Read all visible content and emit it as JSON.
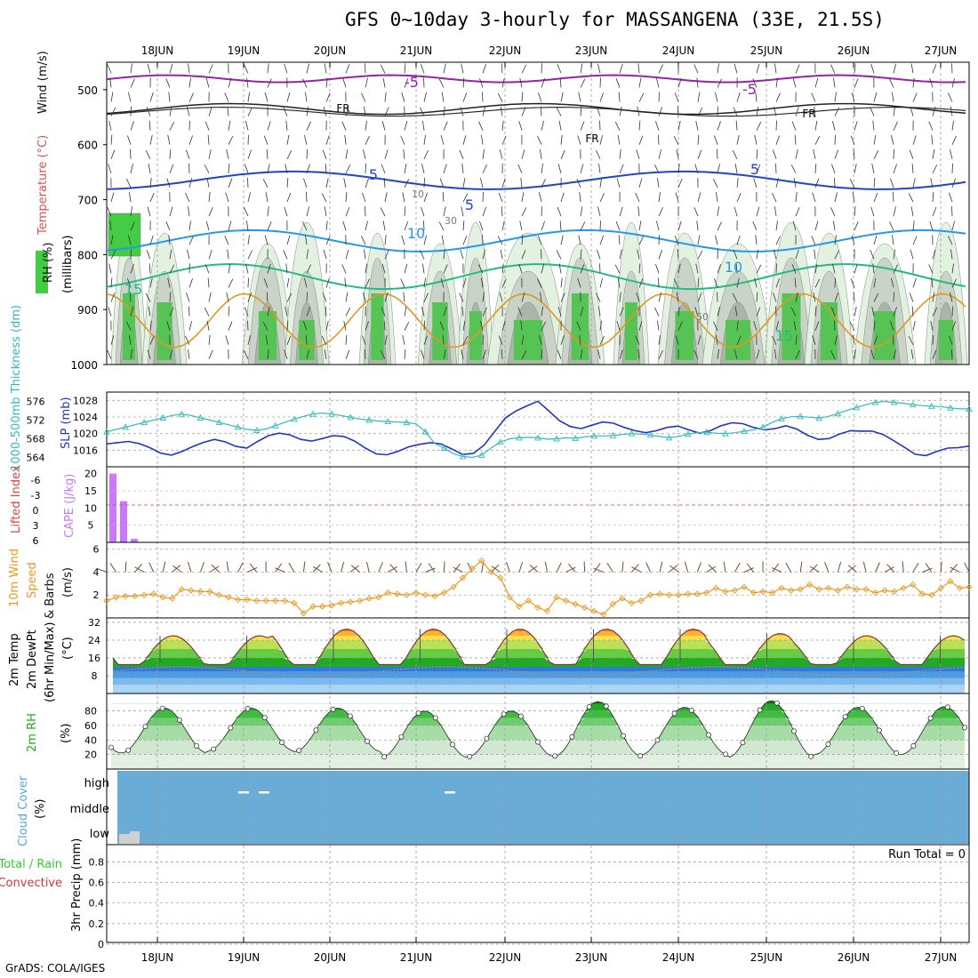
{
  "title": "GFS 0~10day 3-hourly for MASSANGENA (33E, 21.5S)",
  "footer": "GrADS: COLA/IGES",
  "dates": [
    "18JUN",
    "19JUN",
    "20JUN",
    "21JUN",
    "22JUN",
    "23JUN",
    "24JUN",
    "25JUN",
    "26JUN",
    "27JUN"
  ],
  "colors": {
    "slp": "#2233cc",
    "thickness": "#33bbbb",
    "cape": "#cc77ff",
    "lifted": "#dd4444",
    "wind10m": "#ee9922",
    "barb": "#7a4a2a",
    "rh_green": "#22bb22",
    "cloud_blue": "#6aacd6",
    "rain_green": "#33cc33",
    "conv_red": "#dd3333",
    "fz_purple": "#9922aa",
    "t5": "#2244cc",
    "t10": "#2299ee",
    "t15": "#22bb88",
    "warm": "#dd9922"
  },
  "chart_data": [
    {
      "type": "heatmap",
      "name": "Upper-air cross-section",
      "ylabel_parts": [
        "RH (%)",
        "Temperature (°C)",
        "Wind (m/s)"
      ],
      "ylabel_unit": "(millibars)",
      "y_ticks": [
        "500",
        "600",
        "700",
        "800",
        "900",
        "1000"
      ],
      "ylim": [
        450,
        1000
      ],
      "isotherm_labels": [
        "-5",
        "-5",
        "FR",
        "FR",
        "FR",
        "5",
        "5",
        "5",
        "10",
        "10",
        "15",
        "15"
      ],
      "rh_labels": [
        "10",
        "30",
        "50"
      ]
    },
    {
      "type": "line",
      "name": "SLP and thickness",
      "ylabel_left": "1000-500mb Thickness (dm)",
      "ylabel_right": "SLP (mb)",
      "left_ticks": [
        "576",
        "572",
        "568",
        "564"
      ],
      "right_ticks": [
        "1028",
        "1024",
        "1020",
        "1016"
      ],
      "series": [
        {
          "name": "SLP (mb)",
          "values": [
            1017.5,
            1017.8,
            1018.1,
            1017.6,
            1016.6,
            1015.3,
            1014.8,
            1015.7,
            1016.9,
            1017.9,
            1018.6,
            1018.0,
            1016.9,
            1016.5,
            1018.1,
            1019.5,
            1020.1,
            1019.7,
            1018.6,
            1018.2,
            1018.8,
            1019.5,
            1019.3,
            1018.2,
            1016.5,
            1015.1,
            1014.9,
            1015.7,
            1016.8,
            1017.4,
            1017.8,
            1017.5,
            1016.3,
            1015.0,
            1015.2,
            1017.2,
            1020.5,
            1023.8,
            1025.5,
            1026.7,
            1027.8,
            1025.5,
            1023.1,
            1021.7,
            1021.2,
            1022.0,
            1022.8,
            1022.5,
            1021.5,
            1020.7,
            1020.2,
            1020.7,
            1021.5,
            1021.8,
            1020.9,
            1020.1,
            1020.7,
            1021.9,
            1022.6,
            1022.4,
            1021.5,
            1020.9,
            1021.2,
            1021.9,
            1021.1,
            1019.6,
            1018.6,
            1018.8,
            1019.9,
            1020.7,
            1020.6,
            1020.6,
            1019.8,
            1018.3,
            1016.7,
            1015.0,
            1014.7,
            1015.7,
            1016.5,
            1016.6,
            1017.0
          ]
        },
        {
          "name": "1000-500mb Thickness (dm)",
          "values": [
            569.5,
            570.0,
            570.5,
            571.0,
            571.5,
            572.0,
            572.5,
            573.0,
            573.3,
            573.0,
            572.5,
            572.0,
            571.5,
            571.0,
            570.5,
            570.0,
            569.8,
            570.1,
            570.8,
            571.5,
            572.2,
            572.8,
            573.3,
            573.5,
            573.3,
            573.0,
            572.6,
            572.2,
            572.0,
            571.8,
            571.7,
            571.6,
            571.5,
            571.2,
            569.5,
            567.0,
            566.0,
            564.8,
            564.2,
            564.0,
            564.5,
            566.0,
            567.3,
            568.0,
            568.2,
            568.3,
            568.2,
            567.9,
            568.0,
            568.2,
            568.1,
            568.4,
            568.6,
            568.6,
            568.7,
            568.9,
            569.1,
            569.0,
            568.8,
            568.5,
            568.2,
            568.5,
            569.0,
            569.3,
            569.4,
            569.2,
            569.1,
            569.3,
            569.6,
            569.9,
            570.5,
            571.5,
            572.3,
            572.7,
            572.8,
            572.6,
            572.4,
            572.8,
            573.4,
            574.1,
            574.7,
            575.3,
            575.8,
            576.0,
            575.8,
            575.6,
            575.3,
            575.1,
            575.0,
            574.9,
            574.6,
            574.4,
            574.4
          ]
        }
      ]
    },
    {
      "type": "bar",
      "name": "CAPE and Lifted Index",
      "ylabel_left": "Lifted Index",
      "ylabel_right": "CAPE (J/kg)",
      "left_ticks": [
        "-6",
        "-3",
        "0",
        "3",
        "6"
      ],
      "right_ticks": [
        "20",
        "15",
        "10",
        "5"
      ],
      "values": [
        20,
        12,
        1
      ],
      "lifted_index_zero_line": 0
    },
    {
      "type": "line",
      "name": "10m wind",
      "ylabel": "10m Wind Speed & Barbs (m/s)",
      "ylabel_parts": [
        "10m Wind",
        "Speed",
        "& Barbs",
        "(m/s)"
      ],
      "y_ticks": [
        "6",
        "4",
        "2"
      ],
      "ylim": [
        0,
        6
      ],
      "values": [
        1.5,
        1.8,
        1.9,
        1.9,
        2.0,
        2.1,
        1.8,
        1.7,
        2.5,
        2.4,
        2.3,
        2.3,
        2.0,
        1.8,
        1.6,
        1.6,
        1.5,
        1.5,
        1.5,
        1.5,
        1.3,
        0.4,
        1.0,
        1.0,
        1.1,
        1.3,
        1.4,
        1.5,
        1.7,
        1.8,
        2.2,
        2.1,
        2.0,
        2.2,
        2.0,
        1.9,
        2.2,
        2.7,
        3.5,
        4.3,
        5.0,
        4.0,
        3.5,
        1.8,
        1.0,
        1.5,
        0.9,
        0.6,
        1.8,
        1.5,
        1.2,
        0.9,
        0.6,
        0.3,
        1.2,
        1.7,
        1.3,
        1.5,
        2.0,
        2.1,
        2.0,
        2.0,
        2.1,
        2.1,
        2.2,
        2.6,
        2.3,
        2.4,
        2.7,
        2.2,
        2.3,
        2.2,
        2.6,
        2.4,
        2.5,
        2.9,
        2.5,
        2.6,
        2.4,
        2.7,
        2.5,
        2.5,
        2.2,
        2.4,
        2.3,
        2.6,
        2.9,
        2.1,
        2.0,
        2.6,
        3.2,
        2.6,
        2.7
      ]
    },
    {
      "type": "area",
      "name": "2m Temp and DewPt",
      "ylabel_parts": [
        "2m Temp",
        "2m DewPt",
        "(6hr Min/Max)",
        "(°C)"
      ],
      "y_ticks": [
        "32",
        "24",
        "16",
        "8"
      ],
      "ylim": [
        0,
        34
      ],
      "temp_max": [
        26,
        26,
        29,
        29,
        29,
        29,
        29,
        27,
        26,
        26,
        25,
        25
      ],
      "temp_min": [
        12,
        12,
        12,
        12,
        12,
        13,
        13,
        13,
        13,
        13,
        13,
        14
      ],
      "dewpoint_mean": 10
    },
    {
      "type": "area",
      "name": "2m RH",
      "ylabel_parts": [
        "2m RH",
        "(%)"
      ],
      "y_ticks": [
        "80",
        "60",
        "40",
        "20"
      ],
      "ylim": [
        0,
        100
      ],
      "rh_peaks": [
        84,
        84,
        84,
        80,
        80,
        93,
        85,
        94,
        85,
        86
      ],
      "rh_troughs": [
        22,
        25,
        24,
        16,
        17,
        18,
        20,
        16,
        20,
        20
      ]
    },
    {
      "type": "bar",
      "name": "Cloud Cover",
      "ylabel_parts": [
        "Cloud Cover",
        "(%)"
      ],
      "categories": [
        "high",
        "middle",
        "low"
      ]
    },
    {
      "type": "bar",
      "name": "3hr Precip",
      "ylabel_parts": [
        "Total / Rain",
        "Convective",
        "3hr Precip (mm)"
      ],
      "y_ticks": [
        "0",
        "0.2",
        "0.4",
        "0.6",
        "0.8"
      ],
      "ylim": [
        0,
        1
      ],
      "run_total": "Run Total = 0",
      "values": []
    }
  ]
}
